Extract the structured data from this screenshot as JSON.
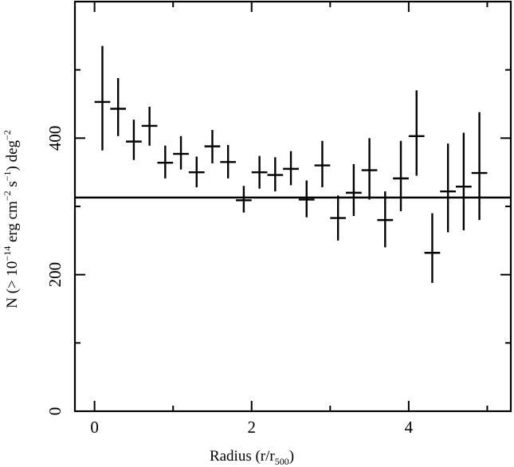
{
  "chart_data": {
    "type": "scatter",
    "xlabel": "Radius (r/r",
    "xlabel_sub": "500",
    "xlabel_tail": ")",
    "ylabel_parts": [
      "N (> 10",
      "−14",
      " erg cm",
      "−2",
      " s",
      "−1",
      ") deg",
      "−2"
    ],
    "xlim": [
      -0.25,
      5.3
    ],
    "ylim": [
      0,
      600
    ],
    "x_ticks": [
      0,
      2,
      4
    ],
    "x_tick_labels": [
      "0",
      "2",
      "4"
    ],
    "x_minor_ticks": [
      1,
      3,
      5
    ],
    "y_ticks": [
      0,
      200,
      400
    ],
    "y_tick_labels": [
      "0",
      "200",
      "400"
    ],
    "y_minor_ticks": [
      100,
      300,
      500
    ],
    "grid": false,
    "reference_line": {
      "y": 313
    },
    "x_error_halfwidth": 0.1,
    "series": [
      {
        "points": [
          {
            "x": 0.1,
            "y": 453,
            "ylo": 382,
            "yhi": 535
          },
          {
            "x": 0.3,
            "y": 443,
            "ylo": 403,
            "yhi": 488
          },
          {
            "x": 0.5,
            "y": 395,
            "ylo": 368,
            "yhi": 427
          },
          {
            "x": 0.7,
            "y": 418,
            "ylo": 389,
            "yhi": 446
          },
          {
            "x": 0.9,
            "y": 364,
            "ylo": 341,
            "yhi": 389
          },
          {
            "x": 1.1,
            "y": 377,
            "ylo": 354,
            "yhi": 403
          },
          {
            "x": 1.3,
            "y": 350,
            "ylo": 328,
            "yhi": 373
          },
          {
            "x": 1.5,
            "y": 388,
            "ylo": 363,
            "yhi": 412
          },
          {
            "x": 1.7,
            "y": 365,
            "ylo": 341,
            "yhi": 390
          },
          {
            "x": 1.9,
            "y": 309,
            "ylo": 291,
            "yhi": 330
          },
          {
            "x": 2.1,
            "y": 350,
            "ylo": 326,
            "yhi": 374
          },
          {
            "x": 2.3,
            "y": 346,
            "ylo": 322,
            "yhi": 372
          },
          {
            "x": 2.5,
            "y": 355,
            "ylo": 331,
            "yhi": 381
          },
          {
            "x": 2.7,
            "y": 310,
            "ylo": 284,
            "yhi": 338
          },
          {
            "x": 2.9,
            "y": 360,
            "ylo": 328,
            "yhi": 396
          },
          {
            "x": 3.1,
            "y": 283,
            "ylo": 250,
            "yhi": 316
          },
          {
            "x": 3.3,
            "y": 320,
            "ylo": 286,
            "yhi": 362
          },
          {
            "x": 3.5,
            "y": 353,
            "ylo": 310,
            "yhi": 400
          },
          {
            "x": 3.7,
            "y": 280,
            "ylo": 240,
            "yhi": 322
          },
          {
            "x": 3.9,
            "y": 341,
            "ylo": 293,
            "yhi": 396
          },
          {
            "x": 4.1,
            "y": 403,
            "ylo": 345,
            "yhi": 470
          },
          {
            "x": 4.3,
            "y": 232,
            "ylo": 188,
            "yhi": 290
          },
          {
            "x": 4.5,
            "y": 322,
            "ylo": 262,
            "yhi": 392
          },
          {
            "x": 4.7,
            "y": 329,
            "ylo": 265,
            "yhi": 408
          },
          {
            "x": 4.9,
            "y": 349,
            "ylo": 280,
            "yhi": 438
          }
        ]
      }
    ]
  }
}
